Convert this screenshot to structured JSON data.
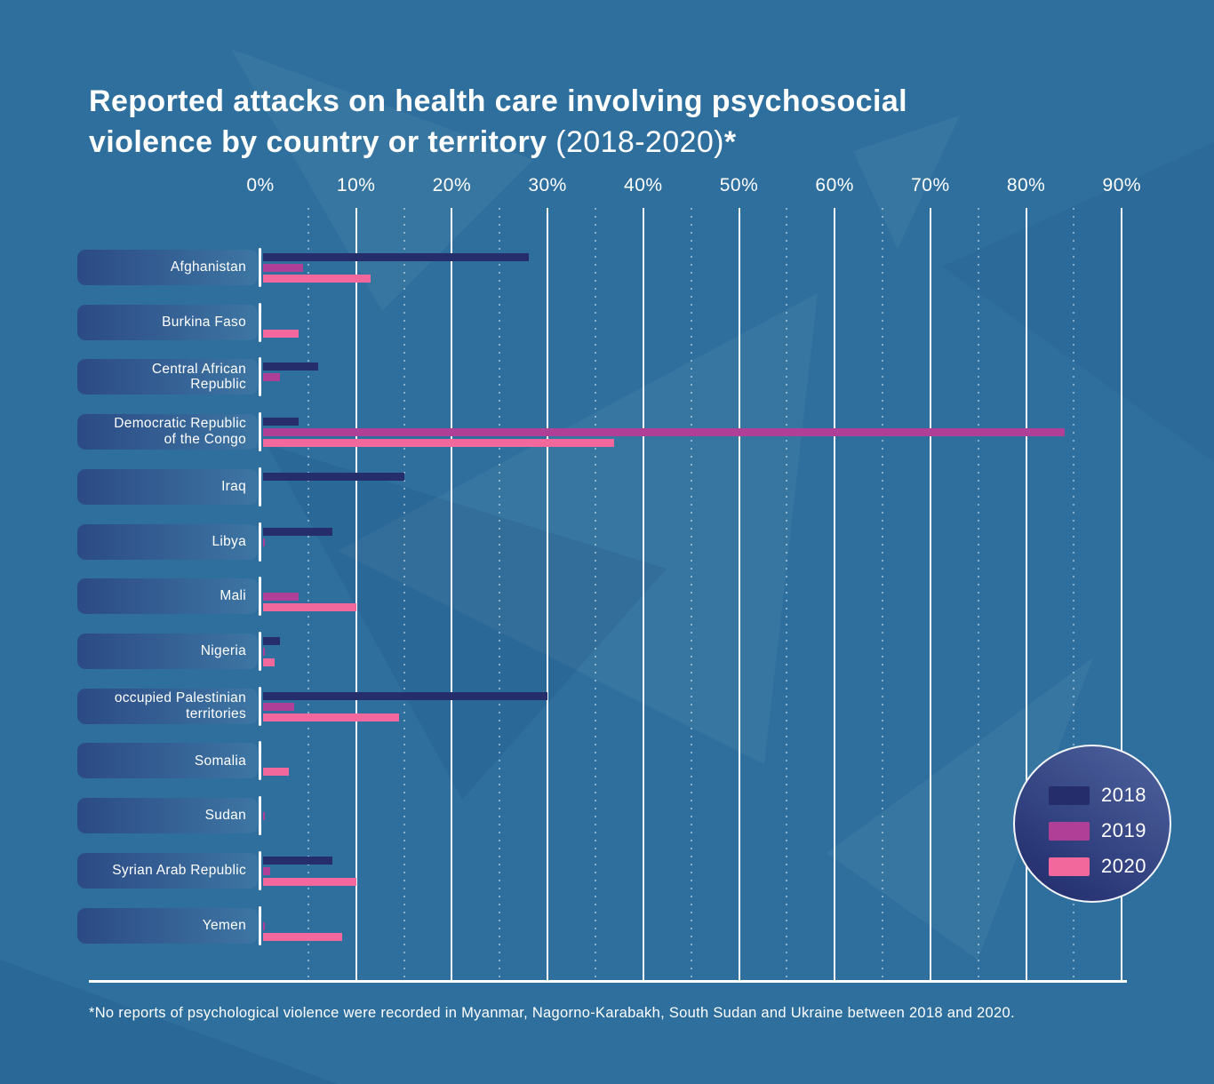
{
  "title": {
    "line1": "Reported attacks on health care involving psychosocial",
    "line2_bold": "violence by country or territory ",
    "line2_light": "(2018-2020)",
    "line2_asterisk": "*"
  },
  "footnote": "*No reports of psychological violence were recorded in Myanmar, Nagorno-Karabakh, South Sudan and Ukraine between 2018 and 2020.",
  "colors": {
    "background": "#2e6f9e",
    "series_2018": "#262d6b",
    "series_2019": "#b03f98",
    "series_2020": "#f2689c"
  },
  "legend": {
    "items": [
      {
        "label": "2018",
        "color": "#262d6b"
      },
      {
        "label": "2019",
        "color": "#b03f98"
      },
      {
        "label": "2020",
        "color": "#f2689c"
      }
    ]
  },
  "chart_data": {
    "type": "bar",
    "orientation": "horizontal",
    "unit": "percent",
    "title": "Reported attacks on health care involving psychosocial violence by country or territory (2018-2020)*",
    "xlabel": "",
    "ylabel": "",
    "xlim": [
      0,
      90
    ],
    "x_tick_labels": [
      "0%",
      "10%",
      "20%",
      "30%",
      "40%",
      "50%",
      "60%",
      "70%",
      "80%",
      "90%"
    ],
    "minor_gridlines_every_pct": 5,
    "legend_position": "bottom-right-circle",
    "categories": [
      "Afghanistan",
      "Burkina Faso",
      "Central African\nRepublic",
      "Democratic Republic\nof the Congo",
      "Iraq",
      "Libya",
      "Mali",
      "Nigeria",
      "occupied Palestinian\nterritories",
      "Somalia",
      "Sudan",
      "Syrian Arab Republic",
      "Yemen"
    ],
    "series": [
      {
        "name": "2018",
        "color": "#262d6b",
        "values": [
          28,
          0,
          6,
          4,
          15,
          7.5,
          0,
          2,
          30,
          0,
          0,
          7.5,
          0
        ]
      },
      {
        "name": "2019",
        "color": "#b03f98",
        "values": [
          4.5,
          0,
          2,
          84,
          0,
          0.5,
          4,
          0.5,
          3.5,
          0,
          0.5,
          1,
          0.5
        ]
      },
      {
        "name": "2020",
        "color": "#f2689c",
        "values": [
          11.5,
          4,
          0,
          37,
          0,
          0,
          10,
          1.5,
          14.5,
          3,
          0,
          10,
          8.5
        ]
      }
    ]
  }
}
